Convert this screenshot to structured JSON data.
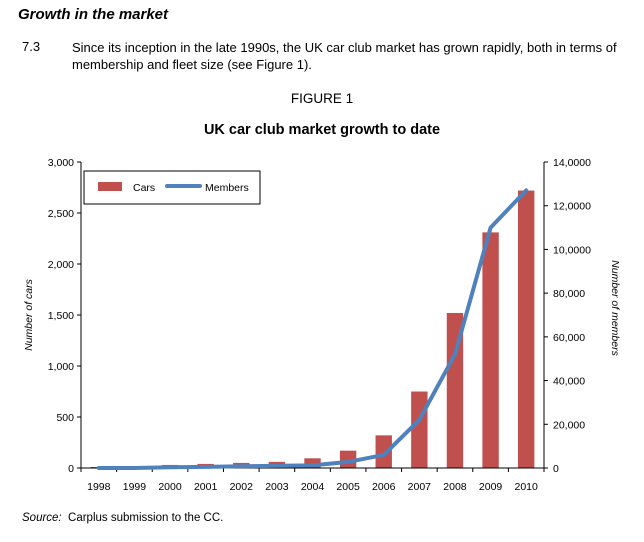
{
  "section": {
    "heading": "Growth in the market",
    "paragraph_number": "7.3",
    "paragraph_text": "Since its inception in the late 1990s, the UK car club market has grown rapidly, both in terms of membership and fleet size (see Figure 1)."
  },
  "figure": {
    "label": "FIGURE 1",
    "source_label": "Source:",
    "source_text": "Carplus submission to the CC."
  },
  "chart_data": {
    "type": "bar",
    "title": "UK car club market growth to date",
    "categories": [
      "1998",
      "1999",
      "2000",
      "2001",
      "2002",
      "2003",
      "2004",
      "2005",
      "2006",
      "2007",
      "2008",
      "2009",
      "2010"
    ],
    "ylabel": "Number of cars",
    "y2label": "Number of members",
    "ylim": [
      0,
      3000
    ],
    "y2lim": [
      0,
      140000
    ],
    "yticks": [
      "0",
      "500",
      "1,000",
      "1,500",
      "2,000",
      "2,500",
      "3,000"
    ],
    "y2ticks": [
      "0",
      "20,000",
      "40,000",
      "60,000",
      "80,000",
      "10,0000",
      "12,0000",
      "14,0000"
    ],
    "grid": false,
    "legend_position": "top-left",
    "series": [
      {
        "name": "Cars",
        "type": "bar",
        "axis": "left",
        "color": "#c0504d",
        "values": [
          10,
          10,
          30,
          40,
          50,
          60,
          95,
          170,
          320,
          750,
          1520,
          2310,
          2720
        ]
      },
      {
        "name": "Members",
        "type": "line",
        "axis": "right",
        "color": "#4f81bd",
        "values": [
          0,
          0,
          300,
          500,
          800,
          1000,
          1200,
          2800,
          6000,
          22000,
          52000,
          110000,
          127000
        ]
      }
    ]
  }
}
